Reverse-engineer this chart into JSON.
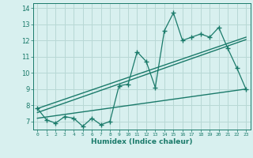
{
  "x": [
    0,
    1,
    2,
    3,
    4,
    5,
    6,
    7,
    8,
    9,
    10,
    11,
    12,
    13,
    14,
    15,
    16,
    17,
    18,
    19,
    20,
    21,
    22,
    23
  ],
  "y_main": [
    7.8,
    7.1,
    6.9,
    7.3,
    7.2,
    6.7,
    7.2,
    6.8,
    7.0,
    9.2,
    9.3,
    11.3,
    10.7,
    9.1,
    12.6,
    13.7,
    12.0,
    12.2,
    12.4,
    12.2,
    12.8,
    11.5,
    10.3,
    9.0
  ],
  "trend1_x": [
    0,
    23
  ],
  "trend1_y": [
    7.8,
    12.2
  ],
  "trend2_x": [
    0,
    23
  ],
  "trend2_y": [
    7.55,
    12.05
  ],
  "trend3_x": [
    0,
    23
  ],
  "trend3_y": [
    7.2,
    9.0
  ],
  "line_color": "#1a7a6a",
  "bg_color": "#d8f0ef",
  "grid_color": "#b8d8d5",
  "xlabel": "Humidex (Indice chaleur)",
  "xlim": [
    -0.5,
    23.5
  ],
  "ylim": [
    6.5,
    14.3
  ],
  "yticks": [
    7,
    8,
    9,
    10,
    11,
    12,
    13,
    14
  ],
  "xticks": [
    0,
    1,
    2,
    3,
    4,
    5,
    6,
    7,
    8,
    9,
    10,
    11,
    12,
    13,
    14,
    15,
    16,
    17,
    18,
    19,
    20,
    21,
    22,
    23
  ],
  "xlabel_fontsize": 6.5,
  "xlabel_fontweight": "bold",
  "xtick_fontsize": 4.5,
  "ytick_fontsize": 6.0
}
